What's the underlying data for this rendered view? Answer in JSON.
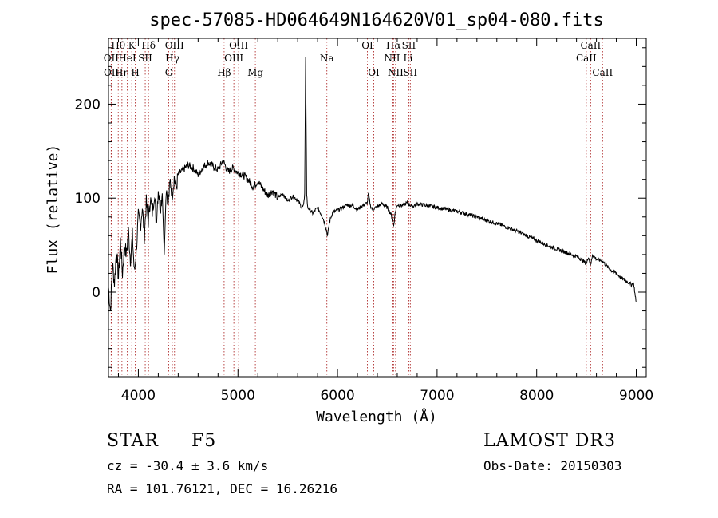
{
  "chart_data": {
    "type": "line",
    "title": "spec-57085-HD064649N164620V01_sp04-080.fits",
    "xlabel": "Wavelength (Å)",
    "ylabel": "Flux (relative)",
    "xlim": [
      3700,
      9100
    ],
    "ylim": [
      -90,
      270
    ],
    "xticks": [
      4000,
      5000,
      6000,
      7000,
      8000,
      9000
    ],
    "yticks": [
      0,
      100,
      200
    ],
    "series": [
      {
        "name": "spectrum",
        "x": [
          3700,
          3720,
          3740,
          3760,
          3780,
          3800,
          3820,
          3840,
          3860,
          3880,
          3900,
          3920,
          3940,
          3960,
          3980,
          4000,
          4020,
          4040,
          4060,
          4080,
          4100,
          4120,
          4140,
          4160,
          4180,
          4200,
          4220,
          4240,
          4260,
          4280,
          4300,
          4320,
          4340,
          4360,
          4380,
          4400,
          4450,
          4500,
          4550,
          4600,
          4650,
          4700,
          4750,
          4800,
          4850,
          4900,
          4950,
          5000,
          5050,
          5100,
          5150,
          5200,
          5250,
          5300,
          5350,
          5400,
          5450,
          5500,
          5550,
          5600,
          5640,
          5660,
          5670,
          5680,
          5690,
          5700,
          5720,
          5750,
          5800,
          5850,
          5880,
          5890,
          5900,
          5920,
          5950,
          6000,
          6050,
          6100,
          6150,
          6200,
          6250,
          6300,
          6310,
          6330,
          6350,
          6400,
          6450,
          6500,
          6540,
          6563,
          6580,
          6600,
          6650,
          6700,
          6750,
          6800,
          6850,
          6900,
          6950,
          7000,
          7100,
          7200,
          7300,
          7400,
          7500,
          7600,
          7700,
          7800,
          7900,
          8000,
          8100,
          8200,
          8300,
          8400,
          8450,
          8500,
          8520,
          8542,
          8560,
          8600,
          8662,
          8700,
          8750,
          8800,
          8850,
          8900,
          8950,
          8970,
          8980,
          8990,
          9000
        ],
        "values": [
          5,
          -20,
          30,
          10,
          45,
          15,
          55,
          20,
          50,
          40,
          65,
          35,
          60,
          20,
          45,
          80,
          70,
          90,
          60,
          95,
          75,
          100,
          85,
          105,
          75,
          110,
          90,
          105,
          40,
          112,
          95,
          118,
          105,
          122,
          110,
          125,
          130,
          135,
          132,
          125,
          133,
          138,
          134,
          130,
          140,
          128,
          132,
          127,
          125,
          120,
          112,
          118,
          110,
          103,
          108,
          100,
          105,
          97,
          102,
          98,
          90,
          92,
          105,
          250,
          105,
          90,
          88,
          84,
          90,
          80,
          70,
          65,
          60,
          75,
          85,
          87,
          90,
          93,
          92,
          88,
          92,
          95,
          105,
          92,
          88,
          91,
          94,
          90,
          82,
          70,
          85,
          93,
          92,
          95,
          91,
          94,
          93,
          92,
          91,
          90,
          88,
          86,
          83,
          80,
          76,
          73,
          69,
          65,
          60,
          55,
          50,
          46,
          42,
          38,
          35,
          30,
          38,
          28,
          40,
          35,
          33,
          28,
          23,
          20,
          15,
          12,
          8,
          10,
          5,
          -5,
          -10
        ]
      }
    ],
    "lines": [
      {
        "label": "Hθ",
        "wavelength": 3798,
        "row": 1
      },
      {
        "label": "OII",
        "wavelength": 3727,
        "row": 2
      },
      {
        "label": "OII",
        "wavelength": 3729,
        "row": 3
      },
      {
        "label": "Hη",
        "wavelength": 3835,
        "row": 3
      },
      {
        "label": "HeI",
        "wavelength": 3889,
        "row": 2
      },
      {
        "label": "K",
        "wavelength": 3934,
        "row": 1
      },
      {
        "label": "H",
        "wavelength": 3969,
        "row": 3
      },
      {
        "label": "SII",
        "wavelength": 4069,
        "row": 2
      },
      {
        "label": "Hδ",
        "wavelength": 4102,
        "row": 1
      },
      {
        "label": "OIII",
        "wavelength": 4363,
        "row": 1
      },
      {
        "label": "Hγ",
        "wavelength": 4341,
        "row": 2
      },
      {
        "label": "G",
        "wavelength": 4305,
        "row": 3
      },
      {
        "label": "Hβ",
        "wavelength": 4861,
        "row": 3
      },
      {
        "label": "OIII",
        "wavelength": 5007,
        "row": 1
      },
      {
        "label": "OIII",
        "wavelength": 4959,
        "row": 2
      },
      {
        "label": "Mg",
        "wavelength": 5175,
        "row": 3
      },
      {
        "label": "Na",
        "wavelength": 5893,
        "row": 2
      },
      {
        "label": "OI",
        "wavelength": 6300,
        "row": 1
      },
      {
        "label": "OI",
        "wavelength": 6364,
        "row": 3
      },
      {
        "label": "Hα",
        "wavelength": 6563,
        "row": 1
      },
      {
        "label": "SII",
        "wavelength": 6716,
        "row": 1
      },
      {
        "label": "NII",
        "wavelength": 6548,
        "row": 2
      },
      {
        "label": "Li",
        "wavelength": 6708,
        "row": 2
      },
      {
        "label": "NII",
        "wavelength": 6583,
        "row": 3
      },
      {
        "label": "SII",
        "wavelength": 6731,
        "row": 3
      },
      {
        "label": "CaII",
        "wavelength": 8542,
        "row": 1
      },
      {
        "label": "CaII",
        "wavelength": 8498,
        "row": 2
      },
      {
        "label": "CaII",
        "wavelength": 8662,
        "row": 3
      }
    ]
  },
  "info": {
    "object_class": "STAR",
    "subclass": "F5",
    "survey": "LAMOST DR3",
    "cz": "cz = -30.4 ± 3.6 km/s",
    "obs_date": "Obs-Date: 20150303",
    "coords": "RA = 101.76121, DEC =  16.26216"
  },
  "colors": {
    "axis": "#000000",
    "spectrum": "#000000",
    "line_marker": "#b03030"
  }
}
